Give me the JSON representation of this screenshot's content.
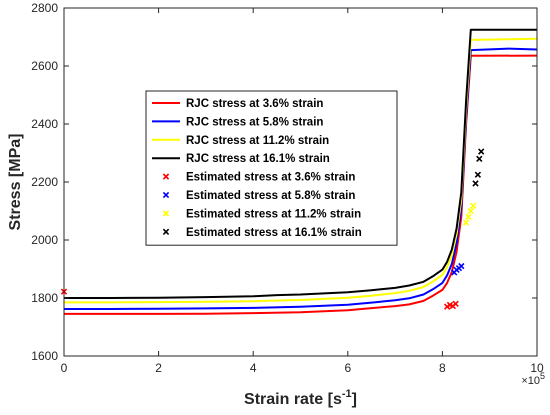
{
  "chart_data": {
    "type": "line",
    "xlabel_main": "Strain rate [s",
    "xlabel_sup": "-1",
    "xlabel_end": "]",
    "ylabel": "Stress [MPa]",
    "x_multiplier_base": "×10",
    "x_multiplier_exp": "5",
    "xlim": [
      0,
      10
    ],
    "ylim": [
      1600,
      2800
    ],
    "xticks": [
      0,
      2,
      4,
      6,
      8,
      10
    ],
    "yticks": [
      1600,
      1800,
      2000,
      2200,
      2400,
      2600,
      2800
    ],
    "grid": false,
    "legend_position": "center-left",
    "colors": {
      "red": "#ff0000",
      "blue": "#0000ff",
      "yellow": "#ffff00",
      "black": "#000000"
    },
    "series": [
      {
        "name": "RJC stress at 3.6% strain",
        "kind": "line",
        "color": "#ff0000",
        "x": [
          0,
          1,
          2,
          3,
          4,
          5,
          6,
          6.5,
          7,
          7.3,
          7.6,
          7.8,
          8.0,
          8.1,
          8.2,
          8.3,
          8.4,
          8.5,
          8.6,
          10
        ],
        "y": [
          1745,
          1745,
          1745,
          1746,
          1748,
          1751,
          1758,
          1765,
          1772,
          1778,
          1790,
          1808,
          1828,
          1852,
          1890,
          1960,
          2080,
          2400,
          2635,
          2636
        ]
      },
      {
        "name": "RJC stress at 5.8% strain",
        "kind": "line",
        "color": "#0000ff",
        "x": [
          0,
          1,
          2,
          3,
          4,
          5,
          6,
          6.5,
          7,
          7.3,
          7.6,
          7.8,
          8.0,
          8.1,
          8.2,
          8.3,
          8.4,
          8.5,
          8.6,
          9.4,
          10
        ],
        "y": [
          1762,
          1762,
          1763,
          1764,
          1766,
          1770,
          1777,
          1784,
          1792,
          1799,
          1812,
          1830,
          1852,
          1878,
          1918,
          1990,
          2110,
          2420,
          2655,
          2660,
          2657
        ]
      },
      {
        "name": "RJC stress at 11.2% strain",
        "kind": "line",
        "color": "#ffff00",
        "x": [
          0,
          1,
          2,
          3,
          4,
          5,
          6,
          6.5,
          7,
          7.3,
          7.6,
          7.8,
          8.0,
          8.1,
          8.2,
          8.3,
          8.4,
          8.5,
          8.6,
          10
        ],
        "y": [
          1785,
          1785,
          1786,
          1787,
          1789,
          1793,
          1801,
          1808,
          1817,
          1825,
          1838,
          1857,
          1880,
          1906,
          1948,
          2020,
          2140,
          2450,
          2690,
          2694
        ]
      },
      {
        "name": "RJC stress at 16.1% strain",
        "kind": "line",
        "color": "#000000",
        "x": [
          0,
          1,
          2,
          3,
          4,
          4.5,
          5,
          6,
          6.5,
          7,
          7.3,
          7.6,
          7.8,
          8.0,
          8.1,
          8.2,
          8.3,
          8.4,
          8.5,
          8.6,
          10
        ],
        "y": [
          1800,
          1800,
          1801,
          1803,
          1806,
          1810,
          1812,
          1820,
          1827,
          1835,
          1843,
          1856,
          1875,
          1898,
          1925,
          1968,
          2040,
          2165,
          2480,
          2725,
          2725
        ]
      },
      {
        "name": "Estimated stress at 3.6% strain",
        "kind": "scatter",
        "color": "#ff0000",
        "x": [
          0.0,
          8.1,
          8.16,
          8.22,
          8.28
        ],
        "y": [
          1822,
          1770,
          1776,
          1772,
          1780
        ]
      },
      {
        "name": "Estimated stress at 5.8% strain",
        "kind": "scatter",
        "color": "#0000ff",
        "x": [
          8.25,
          8.3,
          8.35,
          8.4
        ],
        "y": [
          1888,
          1897,
          1903,
          1910
        ]
      },
      {
        "name": "Estimated stress at 11.2% strain",
        "kind": "scatter",
        "color": "#ffff00",
        "x": [
          8.5,
          8.55,
          8.6,
          8.65
        ],
        "y": [
          2060,
          2080,
          2100,
          2118
        ]
      },
      {
        "name": "Estimated stress at 16.1% strain",
        "kind": "scatter",
        "color": "#000000",
        "x": [
          8.7,
          8.75,
          8.78,
          8.82
        ],
        "y": [
          2195,
          2225,
          2280,
          2305
        ]
      }
    ]
  }
}
